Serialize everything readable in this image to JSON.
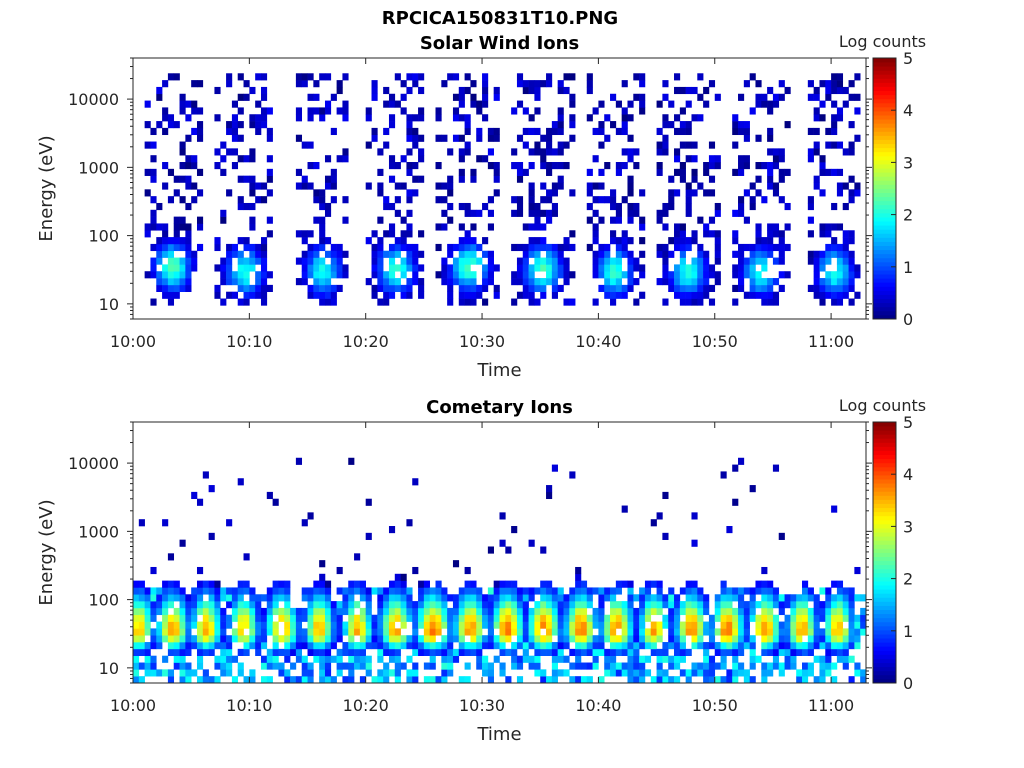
{
  "figure": {
    "title": "RPCICA150831T10.PNG"
  },
  "chart_data": [
    {
      "type": "heatmap",
      "title": "Solar Wind Ions",
      "xlabel": "Time",
      "ylabel": "Energy (eV)",
      "xlim": [
        "10:00",
        "11:03"
      ],
      "ylim": [
        6,
        40000
      ],
      "yscale": "log",
      "x_ticks": [
        "10:00",
        "10:10",
        "10:20",
        "10:30",
        "10:40",
        "10:50",
        "11:00"
      ],
      "y_ticks": [
        "10",
        "100",
        "1000",
        "10000"
      ],
      "colorbar": {
        "label": "Log counts",
        "min": 0,
        "max": 5,
        "ticks": [
          "0",
          "1",
          "2",
          "3",
          "4",
          "5"
        ]
      },
      "colormap": "jet",
      "grid": false,
      "time_bins_min": 0.5,
      "energy_bins_per_decade": 10,
      "structure": "Ten periodic vertical bands of ions spanning ~6 eV to ~20000 eV; peak intensity (~2-2.5 log counts) near 20-60 eV, sparse low counts (0-0.5) at higher energies.",
      "bursts": [
        {
          "center_min": 3.4,
          "halfwidth_min": 1.5,
          "peak_log": 2.3,
          "peak_energy_ev": 35
        },
        {
          "center_min": 9.6,
          "halfwidth_min": 1.6,
          "peak_log": 2.0,
          "peak_energy_ev": 30
        },
        {
          "center_min": 16.3,
          "halfwidth_min": 1.5,
          "peak_log": 2.0,
          "peak_energy_ev": 30
        },
        {
          "center_min": 22.6,
          "halfwidth_min": 1.6,
          "peak_log": 2.1,
          "peak_energy_ev": 32
        },
        {
          "center_min": 28.9,
          "halfwidth_min": 1.7,
          "peak_log": 2.2,
          "peak_energy_ev": 35
        },
        {
          "center_min": 35.2,
          "halfwidth_min": 1.6,
          "peak_log": 2.2,
          "peak_energy_ev": 32
        },
        {
          "center_min": 41.4,
          "halfwidth_min": 1.5,
          "peak_log": 2.1,
          "peak_energy_ev": 30
        },
        {
          "center_min": 47.7,
          "halfwidth_min": 1.6,
          "peak_log": 2.0,
          "peak_energy_ev": 30
        },
        {
          "center_min": 54.0,
          "halfwidth_min": 1.6,
          "peak_log": 2.0,
          "peak_energy_ev": 30
        },
        {
          "center_min": 60.3,
          "halfwidth_min": 1.5,
          "peak_log": 2.0,
          "peak_energy_ev": 30
        }
      ]
    },
    {
      "type": "heatmap",
      "title": "Cometary Ions",
      "xlabel": "Time",
      "ylabel": "Energy (eV)",
      "xlim": [
        "10:00",
        "11:03"
      ],
      "ylim": [
        6,
        40000
      ],
      "yscale": "log",
      "x_ticks": [
        "10:00",
        "10:10",
        "10:20",
        "10:30",
        "10:40",
        "10:50",
        "11:00"
      ],
      "y_ticks": [
        "10",
        "100",
        "1000",
        "10000"
      ],
      "colorbar": {
        "label": "Log counts",
        "min": 0,
        "max": 5,
        "ticks": [
          "0",
          "1",
          "2",
          "3",
          "4",
          "5"
        ]
      },
      "colormap": "jet",
      "grid": false,
      "time_bins_min": 0.5,
      "energy_bins_per_decade": 10,
      "structure": "Dense low-energy population between ~8 eV and ~300 eV across the full interval with ~3-minute periodic maxima (~3.5-4 log counts) near 25-45 eV; sparse scattered counts up to ~10000 eV.",
      "bursts": [
        {
          "center_min": 0.5,
          "halfwidth_min": 1.1,
          "peak_log": 3.4,
          "peak_energy_ev": 35
        },
        {
          "center_min": 3.4,
          "halfwidth_min": 1.2,
          "peak_log": 3.6,
          "peak_energy_ev": 35
        },
        {
          "center_min": 6.3,
          "halfwidth_min": 1.1,
          "peak_log": 3.5,
          "peak_energy_ev": 35
        },
        {
          "center_min": 9.5,
          "halfwidth_min": 1.1,
          "peak_log": 3.4,
          "peak_energy_ev": 35
        },
        {
          "center_min": 12.8,
          "halfwidth_min": 1.2,
          "peak_log": 3.6,
          "peak_energy_ev": 35
        },
        {
          "center_min": 16.0,
          "halfwidth_min": 1.1,
          "peak_log": 3.5,
          "peak_energy_ev": 35
        },
        {
          "center_min": 19.3,
          "halfwidth_min": 1.1,
          "peak_log": 3.5,
          "peak_energy_ev": 35
        },
        {
          "center_min": 22.6,
          "halfwidth_min": 1.2,
          "peak_log": 3.6,
          "peak_energy_ev": 35
        },
        {
          "center_min": 25.8,
          "halfwidth_min": 1.3,
          "peak_log": 3.8,
          "peak_energy_ev": 35
        },
        {
          "center_min": 29.0,
          "halfwidth_min": 1.2,
          "peak_log": 3.7,
          "peak_energy_ev": 35
        },
        {
          "center_min": 32.2,
          "halfwidth_min": 1.2,
          "peak_log": 3.9,
          "peak_energy_ev": 35
        },
        {
          "center_min": 35.3,
          "halfwidth_min": 1.2,
          "peak_log": 3.8,
          "peak_energy_ev": 35
        },
        {
          "center_min": 38.5,
          "halfwidth_min": 1.2,
          "peak_log": 3.8,
          "peak_energy_ev": 35
        },
        {
          "center_min": 41.6,
          "halfwidth_min": 1.2,
          "peak_log": 3.7,
          "peak_energy_ev": 35
        },
        {
          "center_min": 44.8,
          "halfwidth_min": 1.1,
          "peak_log": 3.6,
          "peak_energy_ev": 35
        },
        {
          "center_min": 48.0,
          "halfwidth_min": 1.2,
          "peak_log": 3.7,
          "peak_energy_ev": 35
        },
        {
          "center_min": 51.1,
          "halfwidth_min": 1.2,
          "peak_log": 3.8,
          "peak_energy_ev": 35
        },
        {
          "center_min": 54.3,
          "halfwidth_min": 1.2,
          "peak_log": 3.7,
          "peak_energy_ev": 35
        },
        {
          "center_min": 57.5,
          "halfwidth_min": 1.1,
          "peak_log": 3.6,
          "peak_energy_ev": 35
        },
        {
          "center_min": 60.6,
          "halfwidth_min": 1.1,
          "peak_log": 3.5,
          "peak_energy_ev": 35
        }
      ]
    }
  ]
}
